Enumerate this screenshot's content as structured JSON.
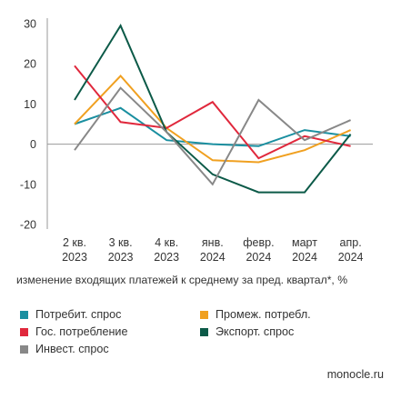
{
  "chart_data": {
    "type": "line",
    "categories": [
      [
        "2 кв.",
        "2023"
      ],
      [
        "3 кв.",
        "2023"
      ],
      [
        "4 кв.",
        "2023"
      ],
      [
        "янв.",
        "2024"
      ],
      [
        "февр.",
        "2024"
      ],
      [
        "март",
        "2024"
      ],
      [
        "апр.",
        "2024"
      ]
    ],
    "y_ticks": [
      "30",
      "20",
      "10",
      "0",
      "-10",
      "-20"
    ],
    "ylim": [
      -20,
      30
    ],
    "xlabel": "изменение входящих платежей к среднему за пред. квартал*, %",
    "legend_position": "bottom",
    "grid": false,
    "series": [
      {
        "name": "Потребит. спрос",
        "color": "#1a8fa0",
        "values": [
          5,
          9,
          1,
          0,
          -0.5,
          3.5,
          2
        ]
      },
      {
        "name": "Промеж. потребл.",
        "color": "#f0a020",
        "values": [
          5,
          17,
          4,
          -4,
          -4.5,
          -1.5,
          3.5
        ]
      },
      {
        "name": "Гос. потребление",
        "color": "#e0283c",
        "values": [
          19.5,
          5.5,
          4,
          10.5,
          -3.5,
          2,
          -0.5
        ]
      },
      {
        "name": "Экспорт. спрос",
        "color": "#0c5a48",
        "values": [
          11,
          29.5,
          3,
          -7.5,
          -12,
          -12,
          2.5
        ]
      },
      {
        "name": "Инвест. спрос",
        "color": "#888888",
        "values": [
          -1.5,
          14,
          3,
          -10,
          11,
          1,
          6
        ]
      }
    ]
  },
  "source": "monocle.ru"
}
